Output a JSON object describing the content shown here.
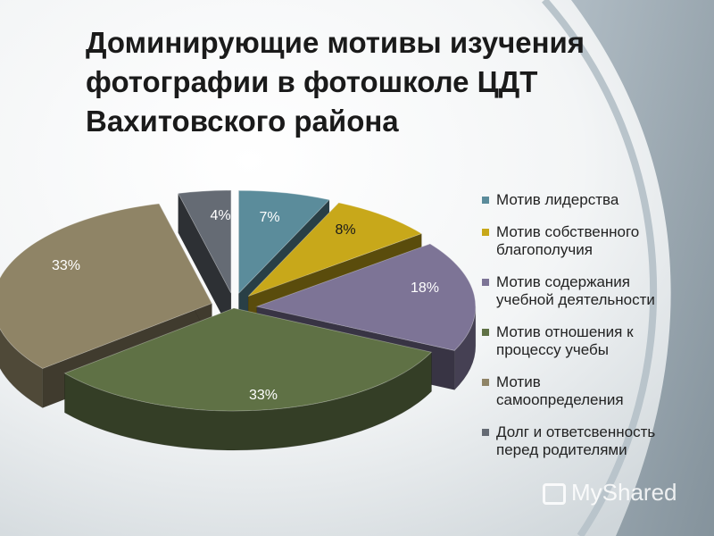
{
  "title_lines": [
    "Доминирующие мотивы  изучения",
    "фотографии в фотошколе ЦДТ",
    "Вахитовского района"
  ],
  "chart_data": {
    "type": "pie",
    "title": "Доминирующие мотивы  изучения фотографии в фотошколе ЦДТ Вахитовского района",
    "legend_position": "right",
    "series": [
      {
        "name": "Мотив лидерства",
        "value": 7,
        "label": "7%",
        "color": "#5B8C9B"
      },
      {
        "name": "Мотив собственного благополучия",
        "value": 8,
        "label": "8%",
        "color": "#C8A81A"
      },
      {
        "name": "Мотив содержания учебной деятельности",
        "value": 18,
        "label": "18%",
        "color": "#7D7496"
      },
      {
        "name": "Мотив отношения к процессу учебы",
        "value": 33,
        "label": "33%",
        "color": "#5F7145"
      },
      {
        "name": "Мотив самоопределения",
        "value": 33,
        "label": "33%",
        "color": "#8F8466"
      },
      {
        "name": "Долг и ответсвенность перед родителями",
        "value": 4,
        "label": "4%",
        "color": "#656B74"
      }
    ]
  },
  "legend_lines": [
    [
      "Мотив лидерства"
    ],
    [
      "Мотив собственного",
      "благополучия"
    ],
    [
      "Мотив содержания",
      "учебной деятельности"
    ],
    [
      "Мотив отношения к",
      "процессу учебы"
    ],
    [
      "Мотив",
      "самоопределения"
    ],
    [
      "Долг и ответсвенность",
      "перед родителями"
    ]
  ],
  "watermark": "MyShared"
}
